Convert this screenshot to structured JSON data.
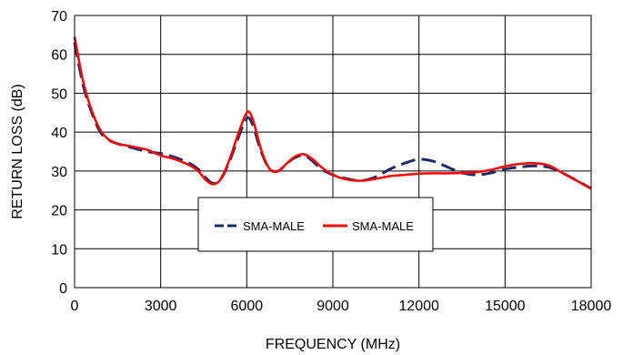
{
  "chart_data": {
    "type": "line",
    "title": "",
    "xlabel": "FREQUENCY (MHz)",
    "ylabel": "RETURN LOSS (dB)",
    "xlim": [
      0,
      18000
    ],
    "ylim": [
      0,
      70
    ],
    "xticks": [
      0,
      3000,
      6000,
      9000,
      12000,
      15000,
      18000
    ],
    "yticks": [
      0,
      10,
      20,
      30,
      40,
      50,
      60,
      70
    ],
    "grid": true,
    "legend_position": "bottom-center",
    "series": [
      {
        "name": "SMA-MALE",
        "color": "#1f2a6b",
        "style": "dashed",
        "x": [
          0,
          300,
          600,
          900,
          1200,
          1500,
          2000,
          2500,
          3000,
          3500,
          4000,
          4300,
          4600,
          4850,
          5100,
          5400,
          5700,
          6000,
          6200,
          6500,
          6800,
          7100,
          7400,
          7700,
          8000,
          8300,
          8600,
          9000,
          9500,
          10000,
          10500,
          11000,
          11500,
          12000,
          12500,
          13000,
          13500,
          14000,
          14500,
          15000,
          15500,
          16000,
          16500,
          17000,
          17500,
          18000
        ],
        "y": [
          63,
          52,
          45,
          40,
          38,
          37,
          36,
          35,
          34.5,
          33.5,
          32,
          30.5,
          28,
          26.8,
          28,
          32.5,
          38.5,
          43.5,
          42,
          35,
          30.5,
          30,
          32,
          33.5,
          34,
          32.5,
          30.5,
          29,
          28,
          27.5,
          28.5,
          30.5,
          32,
          33,
          32.5,
          31,
          29.5,
          29,
          29.5,
          30.5,
          31,
          31.3,
          31,
          29.5,
          27.5,
          25.5
        ]
      },
      {
        "name": "SMA-MALE",
        "color": "#ff0000",
        "style": "solid",
        "x": [
          0,
          300,
          600,
          900,
          1200,
          1500,
          2000,
          2500,
          3000,
          3500,
          4000,
          4300,
          4600,
          4850,
          5100,
          5400,
          5700,
          6000,
          6200,
          6500,
          6800,
          7100,
          7400,
          7700,
          8000,
          8300,
          8600,
          9000,
          9500,
          10000,
          10500,
          11000,
          11500,
          12000,
          12500,
          13000,
          13500,
          14000,
          14500,
          15000,
          15500,
          16000,
          16500,
          17000,
          17500,
          18000
        ],
        "y": [
          64.5,
          53,
          45.5,
          40.5,
          38,
          37,
          36.3,
          35.5,
          34,
          33,
          31.5,
          30,
          27.5,
          26.6,
          28,
          33,
          39.5,
          45,
          43.5,
          35.5,
          30.5,
          30,
          32,
          33.8,
          34.3,
          33,
          31,
          29,
          27.8,
          27.5,
          28,
          28.7,
          29,
          29.3,
          29.4,
          29.4,
          29.5,
          29.7,
          30.3,
          31.2,
          31.8,
          32,
          31.5,
          29.5,
          27.5,
          25.4
        ]
      }
    ]
  }
}
